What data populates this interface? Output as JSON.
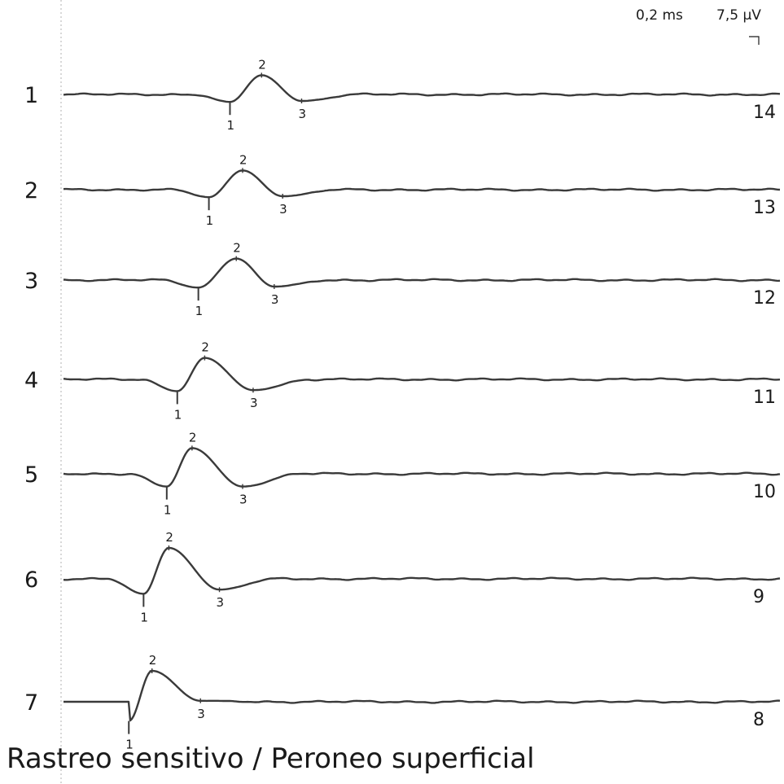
{
  "caption": "Rastreo sensitivo / Peroneo superficial",
  "scale": {
    "time": "0,2 ms",
    "amplitude": "7,5 µV"
  },
  "chart_data": {
    "type": "line",
    "title": "Rastreo sensitivo / Peroneo superficial",
    "scale_time": "0,2 ms",
    "scale_amplitude": "7,5 µV",
    "grid": false,
    "x_unit": "ms",
    "y_unit": "µV",
    "x_range": [
      0,
      3.4
    ],
    "y_units_per_division": 7.5,
    "traces": [
      {
        "left_label": "1",
        "right_label": "14",
        "baseline": 0,
        "markers": {
          "1": [
            0.79,
            -2.3
          ],
          "2": [
            0.94,
            5.9
          ],
          "3": [
            1.13,
            -2.0
          ]
        }
      },
      {
        "left_label": "2",
        "right_label": "13",
        "baseline": 0,
        "markers": {
          "1": [
            0.69,
            -2.3
          ],
          "2": [
            0.85,
            5.9
          ],
          "3": [
            1.04,
            -2.0
          ]
        }
      },
      {
        "left_label": "3",
        "right_label": "12",
        "baseline": 0,
        "markers": {
          "1": [
            0.64,
            -2.3
          ],
          "2": [
            0.82,
            6.6
          ],
          "3": [
            1.0,
            -2.0
          ]
        }
      },
      {
        "left_label": "4",
        "right_label": "11",
        "baseline": 0,
        "markers": {
          "1": [
            0.54,
            -3.6
          ],
          "2": [
            0.67,
            6.6
          ],
          "3": [
            0.9,
            -3.3
          ]
        }
      },
      {
        "left_label": "5",
        "right_label": "10",
        "baseline": 0,
        "markers": {
          "1": [
            0.49,
            -3.9
          ],
          "2": [
            0.61,
            7.9
          ],
          "3": [
            0.85,
            -3.9
          ]
        }
      },
      {
        "left_label": "6",
        "right_label": "9",
        "baseline": 0,
        "markers": {
          "1": [
            0.38,
            -4.6
          ],
          "2": [
            0.5,
            9.5
          ],
          "3": [
            0.74,
            -3.3
          ]
        }
      },
      {
        "left_label": "7",
        "right_label": "8",
        "baseline": 0,
        "markers": {
          "1": [
            0.31,
            -5.9
          ],
          "2": [
            0.42,
            9.5
          ],
          "3": [
            0.65,
            0.3
          ]
        }
      }
    ]
  }
}
